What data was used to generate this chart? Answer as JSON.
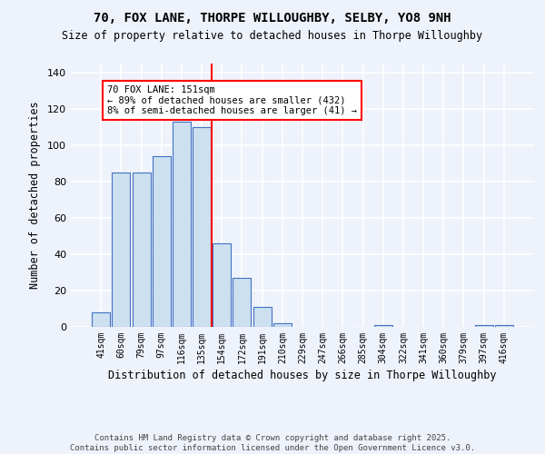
{
  "title_line1": "70, FOX LANE, THORPE WILLOUGHBY, SELBY, YO8 9NH",
  "title_line2": "Size of property relative to detached houses in Thorpe Willoughby",
  "xlabel": "Distribution of detached houses by size in Thorpe Willoughby",
  "ylabel": "Number of detached properties",
  "categories": [
    "41sqm",
    "60sqm",
    "79sqm",
    "97sqm",
    "116sqm",
    "135sqm",
    "154sqm",
    "172sqm",
    "191sqm",
    "210sqm",
    "229sqm",
    "247sqm",
    "266sqm",
    "285sqm",
    "304sqm",
    "322sqm",
    "341sqm",
    "360sqm",
    "379sqm",
    "397sqm",
    "416sqm"
  ],
  "values": [
    8,
    85,
    85,
    94,
    113,
    110,
    46,
    27,
    11,
    2,
    0,
    0,
    0,
    0,
    1,
    0,
    0,
    0,
    0,
    1,
    1
  ],
  "bar_color": "#cce0f0",
  "bar_edge_color": "#4472c4",
  "vline_color": "red",
  "annotation_text": "70 FOX LANE: 151sqm\n← 89% of detached houses are smaller (432)\n8% of semi-detached houses are larger (41) →",
  "ylim": [
    0,
    145
  ],
  "yticks": [
    0,
    20,
    40,
    60,
    80,
    100,
    120,
    140
  ],
  "footer_line1": "Contains HM Land Registry data © Crown copyright and database right 2025.",
  "footer_line2": "Contains public sector information licensed under the Open Government Licence v3.0.",
  "bg_color": "#eef2fb",
  "grid_color": "white"
}
